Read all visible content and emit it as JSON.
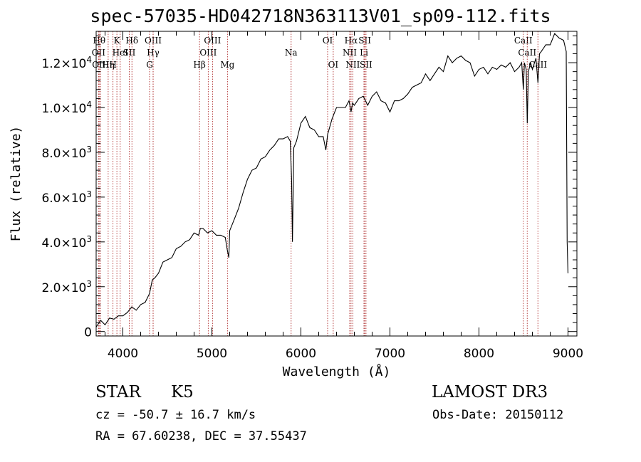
{
  "chart_data": {
    "type": "line",
    "title": "spec-57035-HD042718N363113V01_sp09-112.fits",
    "xlabel": "Wavelength (Å)",
    "ylabel": "Flux (relative)",
    "xlim": [
      3700,
      9100
    ],
    "ylim": [
      -200,
      13400
    ],
    "x_ticks": [
      {
        "value": 4000,
        "label": "4000"
      },
      {
        "value": 5000,
        "label": "5000"
      },
      {
        "value": 6000,
        "label": "6000"
      },
      {
        "value": 7000,
        "label": "7000"
      },
      {
        "value": 8000,
        "label": "8000"
      },
      {
        "value": 9000,
        "label": "9000"
      }
    ],
    "y_ticks": [
      {
        "value": 0,
        "mant": "0",
        "exp": ""
      },
      {
        "value": 2000,
        "mant": "2.0×10",
        "exp": "3"
      },
      {
        "value": 4000,
        "mant": "4.0×10",
        "exp": "3"
      },
      {
        "value": 6000,
        "mant": "6.0×10",
        "exp": "3"
      },
      {
        "value": 8000,
        "mant": "8.0×10",
        "exp": "3"
      },
      {
        "value": 10000,
        "mant": "1.0×10",
        "exp": "4"
      },
      {
        "value": 12000,
        "mant": "1.2×10",
        "exp": "4"
      }
    ],
    "series": [
      {
        "name": "spectrum",
        "x": [
          3700,
          3750,
          3800,
          3850,
          3900,
          3950,
          4000,
          4050,
          4100,
          4150,
          4200,
          4250,
          4300,
          4330,
          4360,
          4400,
          4450,
          4500,
          4550,
          4600,
          4650,
          4700,
          4750,
          4800,
          4850,
          4870,
          4900,
          4950,
          5000,
          5050,
          5100,
          5150,
          5170,
          5190,
          5200,
          5250,
          5300,
          5350,
          5400,
          5450,
          5500,
          5550,
          5600,
          5650,
          5700,
          5750,
          5800,
          5850,
          5880,
          5895,
          5905,
          5920,
          5950,
          6000,
          6050,
          6100,
          6150,
          6200,
          6250,
          6280,
          6300,
          6350,
          6400,
          6450,
          6500,
          6540,
          6563,
          6580,
          6600,
          6650,
          6700,
          6750,
          6800,
          6850,
          6900,
          6950,
          7000,
          7050,
          7100,
          7150,
          7200,
          7250,
          7300,
          7350,
          7400,
          7450,
          7500,
          7550,
          7600,
          7650,
          7700,
          7750,
          7800,
          7850,
          7900,
          7950,
          8000,
          8050,
          8100,
          8150,
          8200,
          8250,
          8300,
          8350,
          8400,
          8450,
          8480,
          8498,
          8510,
          8530,
          8542,
          8555,
          8580,
          8600,
          8640,
          8662,
          8680,
          8700,
          8750,
          8800,
          8850,
          8900,
          8950,
          8980,
          8990,
          9000
        ],
        "y": [
          200,
          500,
          300,
          600,
          550,
          700,
          700,
          850,
          1100,
          950,
          1200,
          1300,
          1700,
          2300,
          2400,
          2600,
          3100,
          3200,
          3300,
          3700,
          3800,
          4000,
          4100,
          4400,
          4300,
          4600,
          4600,
          4400,
          4500,
          4300,
          4300,
          4200,
          3700,
          3300,
          4500,
          5000,
          5500,
          6200,
          6800,
          7200,
          7300,
          7700,
          7800,
          8100,
          8300,
          8600,
          8600,
          8700,
          8500,
          6800,
          4000,
          8200,
          8500,
          9300,
          9600,
          9100,
          9000,
          8700,
          8700,
          8100,
          8800,
          9500,
          10000,
          10000,
          10000,
          10300,
          9800,
          10200,
          10100,
          10400,
          10500,
          10100,
          10500,
          10700,
          10300,
          10200,
          9800,
          10300,
          10300,
          10400,
          10600,
          10900,
          11000,
          11100,
          11500,
          11200,
          11500,
          11800,
          11600,
          12300,
          12000,
          12200,
          12300,
          12100,
          12000,
          11400,
          11700,
          11800,
          11500,
          11800,
          11700,
          11900,
          11800,
          12000,
          11600,
          11800,
          12000,
          10800,
          12000,
          11700,
          9300,
          11600,
          12000,
          11700,
          12200,
          11100,
          12400,
          12500,
          12800,
          12800,
          13300,
          13100,
          13000,
          12500,
          4000,
          2600
        ]
      }
    ],
    "lines_top": [
      {
        "value": 3734,
        "label": "Hθ"
      },
      {
        "value": 3933,
        "label": "K"
      },
      {
        "value": 4102,
        "label": "Hδ"
      },
      {
        "value": 4340,
        "label": "OIII"
      },
      {
        "value": 5007,
        "label": "OIII"
      },
      {
        "value": 6300,
        "label": "OI"
      },
      {
        "value": 6563,
        "label": "Hα"
      },
      {
        "value": 6717,
        "label": "SII"
      },
      {
        "value": 8498,
        "label": "CaII"
      }
    ],
    "lines_mid": [
      {
        "value": 3727,
        "label": "OII"
      },
      {
        "value": 3970,
        "label": "HeI"
      },
      {
        "value": 4072,
        "label": "SII"
      },
      {
        "value": 4340,
        "label": "Hγ"
      },
      {
        "value": 4959,
        "label": "OIII"
      },
      {
        "value": 5890,
        "label": "Na"
      },
      {
        "value": 6548,
        "label": "NII"
      },
      {
        "value": 6708,
        "label": "Li"
      },
      {
        "value": 8542,
        "label": "CaII"
      }
    ],
    "lines_bot": [
      {
        "value": 3750,
        "label": "OIII"
      },
      {
        "value": 3835,
        "label": "Hη"
      },
      {
        "value": 3889,
        "label": "H"
      },
      {
        "value": 4300,
        "label": "G"
      },
      {
        "value": 4861,
        "label": "Hβ"
      },
      {
        "value": 5175,
        "label": "Mg"
      },
      {
        "value": 6363,
        "label": "OI"
      },
      {
        "value": 6583,
        "label": "NII"
      },
      {
        "value": 6731,
        "label": "SII"
      },
      {
        "value": 8662,
        "label": "CaII"
      }
    ]
  },
  "info": {
    "class_label": "STAR",
    "subclass": "K5",
    "survey": "LAMOST DR3",
    "cz": "cz = -50.7 ± 16.7 km/s",
    "obs_date": "Obs-Date: 20150112",
    "radec": "RA =  67.60238, DEC =  37.55437"
  }
}
